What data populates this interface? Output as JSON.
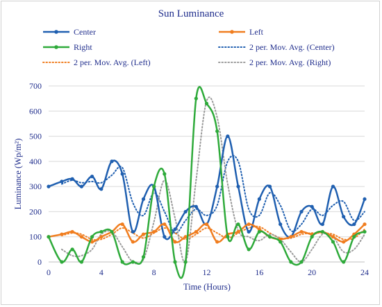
{
  "chart_data": {
    "type": "line",
    "title": "Sun  Luminance",
    "xlabel": "Time (Hours)",
    "ylabel": "Luminance (Wp/m²)",
    "xlim": [
      0,
      24
    ],
    "ylim": [
      0,
      700
    ],
    "xticks": [
      "0",
      "4",
      "8",
      "12",
      "16",
      "20",
      "24"
    ],
    "yticks": [
      "0",
      "100",
      "200",
      "300",
      "400",
      "500",
      "600",
      "700"
    ],
    "grid": "horizontal",
    "legend_position": "top",
    "series": [
      {
        "name": "Center",
        "color": "#1f5fb0",
        "style": "solid-markers",
        "x": [
          0,
          1,
          1.8,
          2.5,
          3.3,
          4,
          4.8,
          5.6,
          6.4,
          7.2,
          8,
          8.8,
          9.6,
          10.4,
          11.2,
          12,
          12.8,
          13.6,
          14.4,
          15.2,
          16,
          16.8,
          17.6,
          18.4,
          19.2,
          20,
          20.8,
          21.6,
          22.4,
          23.2,
          24
        ],
        "y": [
          300,
          320,
          330,
          300,
          340,
          290,
          400,
          350,
          120,
          250,
          300,
          100,
          130,
          200,
          220,
          150,
          300,
          500,
          300,
          120,
          250,
          300,
          150,
          100,
          200,
          220,
          150,
          300,
          180,
          150,
          250
        ]
      },
      {
        "name": "Left",
        "color": "#f07d1f",
        "style": "solid-markers",
        "x": [
          0,
          1,
          1.8,
          2.5,
          3.3,
          4,
          4.8,
          5.6,
          6.4,
          7.2,
          8,
          8.8,
          9.6,
          10.4,
          11.2,
          12,
          12.8,
          13.6,
          14.4,
          15.2,
          16,
          16.8,
          17.6,
          18.4,
          19.2,
          20,
          20.8,
          21.6,
          22.4,
          23.2,
          24
        ],
        "y": [
          100,
          110,
          120,
          100,
          80,
          100,
          120,
          150,
          80,
          110,
          120,
          150,
          80,
          100,
          120,
          150,
          80,
          110,
          120,
          150,
          130,
          100,
          90,
          100,
          120,
          110,
          120,
          100,
          80,
          110,
          150
        ]
      },
      {
        "name": "Right",
        "color": "#2eaa3a",
        "style": "solid-markers",
        "x": [
          0,
          1,
          1.8,
          2.5,
          3.3,
          4,
          4.8,
          5.6,
          6.4,
          7.2,
          8,
          8.8,
          9.6,
          10.4,
          11.2,
          12,
          12.8,
          13.6,
          14.4,
          15.2,
          16,
          16.8,
          17.6,
          18.4,
          19.2,
          20,
          20.8,
          21.6,
          22.4,
          23.2,
          24
        ],
        "y": [
          100,
          0,
          50,
          0,
          100,
          120,
          120,
          0,
          0,
          20,
          300,
          350,
          0,
          0,
          650,
          630,
          520,
          100,
          150,
          50,
          120,
          100,
          80,
          0,
          0,
          100,
          120,
          80,
          0,
          100,
          120
        ]
      },
      {
        "name": "2 per. Mov. Avg. (Center)",
        "color": "#1f5fb0",
        "style": "dotted",
        "x": [
          1,
          1.8,
          2.5,
          3.3,
          4,
          4.8,
          5.6,
          6.4,
          7.2,
          8,
          8.8,
          9.6,
          10.4,
          11.2,
          12,
          12.8,
          13.6,
          14.4,
          15.2,
          16,
          16.8,
          17.6,
          18.4,
          19.2,
          20,
          20.8,
          21.6,
          22.4,
          23.2,
          24
        ],
        "y": [
          310,
          325,
          315,
          320,
          315,
          345,
          375,
          235,
          185,
          275,
          200,
          115,
          165,
          210,
          185,
          225,
          400,
          400,
          210,
          185,
          275,
          225,
          125,
          150,
          210,
          185,
          225,
          240,
          165,
          200
        ]
      },
      {
        "name": "2 per. Mov. Avg. (Left)",
        "color": "#f07d1f",
        "style": "dotted",
        "x": [
          1,
          1.8,
          2.5,
          3.3,
          4,
          4.8,
          5.6,
          6.4,
          7.2,
          8,
          8.8,
          9.6,
          10.4,
          11.2,
          12,
          12.8,
          13.6,
          14.4,
          15.2,
          16,
          16.8,
          17.6,
          18.4,
          19.2,
          20,
          20.8,
          21.6,
          22.4,
          23.2,
          24
        ],
        "y": [
          105,
          115,
          110,
          90,
          90,
          110,
          135,
          115,
          95,
          115,
          135,
          115,
          90,
          110,
          135,
          115,
          95,
          115,
          135,
          140,
          115,
          95,
          95,
          110,
          115,
          115,
          110,
          90,
          95,
          130
        ]
      },
      {
        "name": "2 per. Mov. Avg. (Right)",
        "color": "#9a9a9a",
        "style": "dotted",
        "x": [
          1,
          1.8,
          2.5,
          3.3,
          4,
          4.8,
          5.6,
          6.4,
          7.2,
          8,
          8.8,
          9.6,
          10.4,
          11.2,
          12,
          12.8,
          13.6,
          14.4,
          15.2,
          16,
          16.8,
          17.6,
          18.4,
          19.2,
          20,
          20.8,
          21.6,
          22.4,
          23.2,
          24
        ],
        "y": [
          50,
          25,
          25,
          50,
          110,
          120,
          60,
          0,
          10,
          160,
          325,
          175,
          0,
          325,
          640,
          575,
          310,
          125,
          100,
          85,
          110,
          90,
          40,
          0,
          50,
          110,
          100,
          40,
          50,
          110
        ]
      }
    ]
  }
}
